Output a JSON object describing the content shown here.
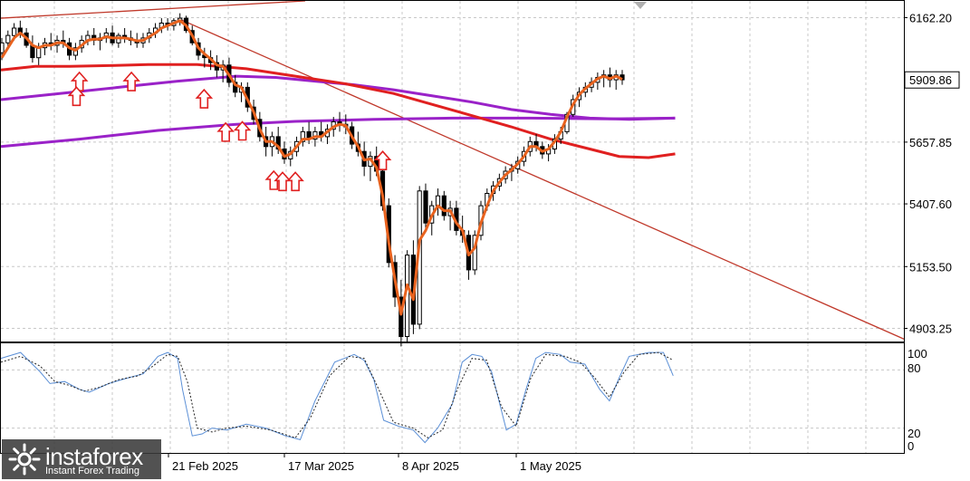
{
  "chart_data": [
    {
      "type": "candlestick",
      "price_axis_ticks": [
        "6162.20",
        "5657.85",
        "5407.60",
        "5153.50",
        "4903.25"
      ],
      "current_price": "5909.86",
      "ylim": [
        4850,
        6230
      ],
      "date_labels": [
        "21 Feb 2025",
        "17 Mar 2025",
        "8 Apr 2025",
        "1 May 2025"
      ],
      "grid": true,
      "colors": {
        "ema_fast": "#e8621e",
        "ma_red": "#e02020",
        "ma_purple_1": "#9a22c8",
        "ma_purple_2": "#9a22c8",
        "trendline": "#c0392b",
        "arrow": "#e02020",
        "candle_up": "#ffffff",
        "candle_down": "#000000"
      },
      "candles": [
        [
          6020,
          6080,
          5990,
          6060
        ],
        [
          6060,
          6110,
          6040,
          6090
        ],
        [
          6090,
          6140,
          6070,
          6120
        ],
        [
          6120,
          6150,
          6080,
          6100
        ],
        [
          6100,
          6120,
          6040,
          6050
        ],
        [
          6050,
          6090,
          5980,
          6000
        ],
        [
          6000,
          6060,
          5970,
          6040
        ],
        [
          6040,
          6080,
          6010,
          6060
        ],
        [
          6060,
          6100,
          6030,
          6050
        ],
        [
          6050,
          6090,
          6020,
          6070
        ],
        [
          6070,
          6110,
          6040,
          6060
        ],
        [
          6060,
          6080,
          5990,
          6010
        ],
        [
          6010,
          6060,
          5990,
          6040
        ],
        [
          6040,
          6090,
          6020,
          6070
        ],
        [
          6070,
          6110,
          6050,
          6090
        ],
        [
          6090,
          6120,
          6050,
          6070
        ],
        [
          6070,
          6100,
          6030,
          6080
        ],
        [
          6080,
          6120,
          6060,
          6100
        ],
        [
          6100,
          6130,
          6050,
          6060
        ],
        [
          6060,
          6100,
          6040,
          6090
        ],
        [
          6090,
          6120,
          6060,
          6080
        ],
        [
          6080,
          6110,
          6050,
          6070
        ],
        [
          6070,
          6100,
          6040,
          6060
        ],
        [
          6060,
          6100,
          6040,
          6080
        ],
        [
          6080,
          6120,
          6060,
          6100
        ],
        [
          6100,
          6140,
          6080,
          6120
        ],
        [
          6120,
          6160,
          6100,
          6140
        ],
        [
          6140,
          6160,
          6110,
          6130
        ],
        [
          6130,
          6160,
          6110,
          6150
        ],
        [
          6150,
          6180,
          6130,
          6160
        ],
        [
          6160,
          6170,
          6100,
          6110
        ],
        [
          6110,
          6130,
          6050,
          6060
        ],
        [
          6060,
          6080,
          5990,
          6010
        ],
        [
          6010,
          6040,
          5960,
          6000
        ],
        [
          6000,
          6030,
          5950,
          5980
        ],
        [
          5980,
          6010,
          5920,
          5950
        ],
        [
          5950,
          5990,
          5900,
          5970
        ],
        [
          5970,
          6000,
          5880,
          5900
        ],
        [
          5900,
          5930,
          5840,
          5860
        ],
        [
          5860,
          5900,
          5820,
          5880
        ],
        [
          5880,
          5900,
          5780,
          5800
        ],
        [
          5800,
          5830,
          5730,
          5750
        ],
        [
          5750,
          5780,
          5660,
          5680
        ],
        [
          5680,
          5720,
          5600,
          5640
        ],
        [
          5640,
          5700,
          5600,
          5680
        ],
        [
          5680,
          5720,
          5610,
          5630
        ],
        [
          5630,
          5660,
          5570,
          5590
        ],
        [
          5590,
          5640,
          5560,
          5620
        ],
        [
          5620,
          5680,
          5600,
          5660
        ],
        [
          5660,
          5720,
          5640,
          5700
        ],
        [
          5700,
          5740,
          5650,
          5670
        ],
        [
          5670,
          5720,
          5640,
          5700
        ],
        [
          5700,
          5740,
          5660,
          5680
        ],
        [
          5680,
          5730,
          5650,
          5710
        ],
        [
          5710,
          5760,
          5680,
          5740
        ],
        [
          5740,
          5780,
          5700,
          5730
        ],
        [
          5730,
          5770,
          5690,
          5720
        ],
        [
          5720,
          5740,
          5630,
          5650
        ],
        [
          5650,
          5700,
          5600,
          5620
        ],
        [
          5620,
          5660,
          5520,
          5560
        ],
        [
          5560,
          5620,
          5500,
          5600
        ],
        [
          5600,
          5640,
          5520,
          5540
        ],
        [
          5540,
          5560,
          5380,
          5400
        ],
        [
          5400,
          5430,
          5150,
          5170
        ],
        [
          5170,
          5200,
          4990,
          5030
        ],
        [
          5030,
          5100,
          4830,
          4870
        ],
        [
          4870,
          5220,
          4850,
          5200
        ],
        [
          5200,
          5260,
          4880,
          4920
        ],
        [
          4920,
          5480,
          4900,
          5460
        ],
        [
          5460,
          5490,
          5300,
          5330
        ],
        [
          5330,
          5420,
          5280,
          5400
        ],
        [
          5400,
          5470,
          5360,
          5440
        ],
        [
          5440,
          5460,
          5340,
          5360
        ],
        [
          5360,
          5420,
          5300,
          5390
        ],
        [
          5390,
          5420,
          5280,
          5300
        ],
        [
          5300,
          5360,
          5250,
          5280
        ],
        [
          5280,
          5300,
          5100,
          5140
        ],
        [
          5140,
          5300,
          5120,
          5280
        ],
        [
          5280,
          5420,
          5260,
          5400
        ],
        [
          5400,
          5470,
          5380,
          5450
        ],
        [
          5450,
          5500,
          5420,
          5480
        ],
        [
          5480,
          5530,
          5460,
          5510
        ],
        [
          5510,
          5560,
          5490,
          5540
        ],
        [
          5540,
          5570,
          5500,
          5550
        ],
        [
          5550,
          5600,
          5530,
          5580
        ],
        [
          5580,
          5640,
          5560,
          5620
        ],
        [
          5620,
          5680,
          5600,
          5660
        ],
        [
          5660,
          5690,
          5620,
          5640
        ],
        [
          5640,
          5660,
          5590,
          5610
        ],
        [
          5610,
          5650,
          5580,
          5630
        ],
        [
          5630,
          5690,
          5610,
          5670
        ],
        [
          5670,
          5720,
          5650,
          5700
        ],
        [
          5700,
          5780,
          5690,
          5770
        ],
        [
          5770,
          5850,
          5760,
          5830
        ],
        [
          5830,
          5880,
          5800,
          5860
        ],
        [
          5860,
          5900,
          5840,
          5880
        ],
        [
          5880,
          5920,
          5860,
          5900
        ],
        [
          5900,
          5940,
          5870,
          5920
        ],
        [
          5920,
          5950,
          5880,
          5930
        ],
        [
          5930,
          5960,
          5880,
          5910
        ],
        [
          5910,
          5950,
          5870,
          5930
        ],
        [
          5930,
          5950,
          5890,
          5910
        ]
      ],
      "ema_fast": [
        6000,
        6040,
        6080,
        6100,
        6080,
        6050,
        6040,
        6050,
        6050,
        6060,
        6060,
        6040,
        6030,
        6050,
        6070,
        6075,
        6075,
        6085,
        6080,
        6080,
        6080,
        6075,
        6068,
        6070,
        6085,
        6100,
        6120,
        6130,
        6140,
        6150,
        6130,
        6090,
        6040,
        6015,
        5995,
        5970,
        5965,
        5930,
        5890,
        5880,
        5830,
        5780,
        5710,
        5660,
        5660,
        5640,
        5600,
        5610,
        5640,
        5670,
        5670,
        5680,
        5680,
        5700,
        5720,
        5730,
        5725,
        5680,
        5640,
        5585,
        5590,
        5555,
        5440,
        5250,
        5100,
        4960,
        5080,
        5020,
        5260,
        5300,
        5360,
        5400,
        5380,
        5380,
        5330,
        5300,
        5200,
        5230,
        5330,
        5400,
        5460,
        5495,
        5525,
        5545,
        5570,
        5600,
        5640,
        5640,
        5620,
        5630,
        5660,
        5700,
        5760,
        5810,
        5850,
        5875,
        5895,
        5915,
        5925,
        5915,
        5925,
        5912
      ],
      "ma_red": [
        [
          0,
          5950
        ],
        [
          35,
          5965
        ],
        [
          70,
          5965
        ],
        [
          110,
          5968
        ],
        [
          150,
          5972
        ],
        [
          200,
          5972
        ],
        [
          250,
          5955
        ],
        [
          300,
          5925
        ],
        [
          350,
          5895
        ],
        [
          400,
          5855
        ],
        [
          440,
          5810
        ],
        [
          480,
          5765
        ],
        [
          520,
          5720
        ],
        [
          560,
          5670
        ],
        [
          600,
          5630
        ],
        [
          630,
          5600
        ],
        [
          660,
          5595
        ],
        [
          687,
          5610
        ]
      ],
      "ma_purple_1": [
        [
          0,
          5830
        ],
        [
          60,
          5855
        ],
        [
          120,
          5880
        ],
        [
          180,
          5905
        ],
        [
          240,
          5925
        ],
        [
          280,
          5920
        ],
        [
          320,
          5905
        ],
        [
          360,
          5890
        ],
        [
          400,
          5870
        ],
        [
          440,
          5845
        ],
        [
          480,
          5820
        ],
        [
          520,
          5790
        ],
        [
          560,
          5770
        ],
        [
          600,
          5755
        ],
        [
          640,
          5750
        ],
        [
          687,
          5755
        ]
      ],
      "ma_purple_2": [
        [
          0,
          5640
        ],
        [
          80,
          5670
        ],
        [
          160,
          5705
        ],
        [
          240,
          5730
        ],
        [
          300,
          5742
        ],
        [
          380,
          5750
        ],
        [
          460,
          5755
        ],
        [
          540,
          5755
        ],
        [
          620,
          5752
        ],
        [
          687,
          5755
        ]
      ],
      "trendlines": [
        {
          "from": [
            180,
            6160
          ],
          "to": [
            920,
            4860
          ]
        },
        {
          "from": [
            0,
            6160
          ],
          "to": [
            310,
            6230
          ]
        }
      ],
      "arrow_markers": [
        [
          80,
          5940
        ],
        [
          77,
          5880
        ],
        [
          133,
          5940
        ],
        [
          207,
          5870
        ],
        [
          229,
          5735
        ],
        [
          246,
          5740
        ],
        [
          278,
          5540
        ],
        [
          287,
          5535
        ],
        [
          300,
          5535
        ],
        [
          389,
          5620
        ]
      ]
    },
    {
      "type": "line",
      "indicator": "stochastic",
      "yticks": [
        "100",
        "80",
        "20",
        "0"
      ],
      "ylim": [
        0,
        100
      ],
      "k_line": [
        [
          0,
          92
        ],
        [
          20,
          98
        ],
        [
          40,
          78
        ],
        [
          50,
          66
        ],
        [
          65,
          68
        ],
        [
          80,
          60
        ],
        [
          90,
          57
        ],
        [
          110,
          66
        ],
        [
          130,
          72
        ],
        [
          145,
          76
        ],
        [
          160,
          94
        ],
        [
          170,
          98
        ],
        [
          180,
          92
        ],
        [
          185,
          60
        ],
        [
          195,
          12
        ],
        [
          205,
          14
        ],
        [
          215,
          20
        ],
        [
          230,
          18
        ],
        [
          250,
          24
        ],
        [
          270,
          20
        ],
        [
          290,
          12
        ],
        [
          305,
          8
        ],
        [
          320,
          48
        ],
        [
          340,
          88
        ],
        [
          360,
          96
        ],
        [
          370,
          90
        ],
        [
          380,
          70
        ],
        [
          390,
          28
        ],
        [
          405,
          22
        ],
        [
          420,
          18
        ],
        [
          432,
          5
        ],
        [
          445,
          20
        ],
        [
          460,
          45
        ],
        [
          470,
          88
        ],
        [
          480,
          96
        ],
        [
          490,
          94
        ],
        [
          500,
          78
        ],
        [
          515,
          18
        ],
        [
          525,
          24
        ],
        [
          535,
          60
        ],
        [
          545,
          92
        ],
        [
          555,
          98
        ],
        [
          570,
          96
        ],
        [
          580,
          88
        ],
        [
          595,
          86
        ],
        [
          610,
          60
        ],
        [
          620,
          48
        ],
        [
          630,
          72
        ],
        [
          640,
          94
        ],
        [
          660,
          98
        ],
        [
          675,
          98
        ],
        [
          685,
          74
        ]
      ],
      "d_line": [
        [
          0,
          88
        ],
        [
          20,
          94
        ],
        [
          40,
          84
        ],
        [
          55,
          68
        ],
        [
          70,
          64
        ],
        [
          85,
          58
        ],
        [
          100,
          62
        ],
        [
          120,
          70
        ],
        [
          140,
          74
        ],
        [
          155,
          84
        ],
        [
          170,
          96
        ],
        [
          180,
          94
        ],
        [
          190,
          68
        ],
        [
          200,
          20
        ],
        [
          215,
          16
        ],
        [
          230,
          20
        ],
        [
          250,
          22
        ],
        [
          275,
          18
        ],
        [
          300,
          10
        ],
        [
          315,
          30
        ],
        [
          335,
          74
        ],
        [
          355,
          94
        ],
        [
          370,
          92
        ],
        [
          385,
          60
        ],
        [
          400,
          26
        ],
        [
          420,
          20
        ],
        [
          435,
          10
        ],
        [
          450,
          18
        ],
        [
          465,
          60
        ],
        [
          480,
          92
        ],
        [
          495,
          90
        ],
        [
          510,
          42
        ],
        [
          525,
          22
        ],
        [
          540,
          72
        ],
        [
          555,
          96
        ],
        [
          575,
          94
        ],
        [
          590,
          88
        ],
        [
          605,
          72
        ],
        [
          620,
          52
        ],
        [
          635,
          78
        ],
        [
          650,
          96
        ],
        [
          670,
          98
        ],
        [
          685,
          90
        ]
      ]
    }
  ],
  "watermark": {
    "brand": "instaforex",
    "tagline": "Instant Forex Trading"
  }
}
